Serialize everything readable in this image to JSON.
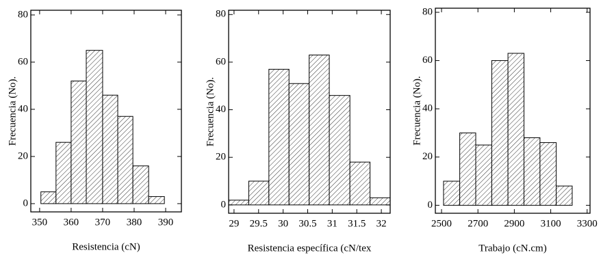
{
  "chart_data": [
    {
      "type": "histogram",
      "x_label": "Resistencia (cN)",
      "y_label": "Frecuencia (No).",
      "bins": [
        350.4,
        355.2,
        360,
        364.8,
        370,
        374.8,
        379.6,
        384.6,
        389.6
      ],
      "values": [
        5,
        26,
        52,
        65,
        46,
        37,
        16,
        3
      ],
      "xlim": [
        347.2,
        395
      ],
      "xticks": [
        350,
        360,
        370,
        380,
        390
      ],
      "ylim": [
        -3.5,
        82
      ],
      "yticks": [
        0,
        20,
        40,
        60,
        80
      ]
    },
    {
      "type": "histogram",
      "x_label": "Resistencia específica (cN/tex",
      "y_label": "Frecuencia (No).",
      "bins": [
        28.89,
        29.3,
        29.71,
        30.12,
        30.53,
        30.94,
        31.36,
        31.77,
        32.18
      ],
      "values": [
        2,
        10,
        57,
        51,
        63,
        46,
        18,
        3
      ],
      "xlim": [
        28.89,
        32.18
      ],
      "xticks": [
        29,
        29.5,
        30,
        30.5,
        31,
        31.5,
        32
      ],
      "ylim": [
        -3.5,
        81.8
      ],
      "yticks": [
        0,
        20,
        40,
        60,
        80
      ]
    },
    {
      "type": "histogram",
      "x_label": "Trabajo (cN.cm)",
      "y_label": "Frecuencia (No).",
      "bins": [
        2511,
        2600,
        2688,
        2776,
        2865,
        2953,
        3041,
        3130,
        3218
      ],
      "values": [
        10,
        30,
        25,
        60,
        63,
        28,
        26,
        8
      ],
      "xlim": [
        2466,
        3316
      ],
      "xticks": [
        2500,
        2700,
        2900,
        3100,
        3300
      ],
      "ylim": [
        -3.3,
        81.7
      ],
      "yticks": [
        0,
        20,
        40,
        60,
        80
      ]
    }
  ]
}
